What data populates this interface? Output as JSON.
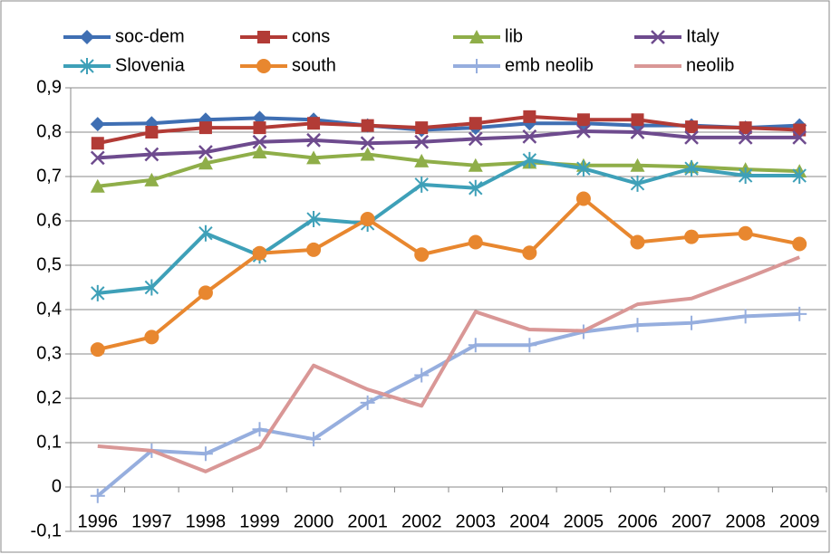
{
  "chart_data": {
    "type": "line",
    "categories": [
      "1996",
      "1997",
      "1998",
      "1999",
      "2000",
      "2001",
      "2002",
      "2003",
      "2004",
      "2005",
      "2006",
      "2007",
      "2008",
      "2009"
    ],
    "ylim": [
      -0.1,
      0.9
    ],
    "yticks": [
      {
        "value": -0.1,
        "label": "-0,1"
      },
      0,
      {
        "value": 0.1,
        "label": "0,1"
      },
      {
        "value": 0.2,
        "label": "0,2"
      },
      {
        "value": 0.3,
        "label": "0,3"
      },
      {
        "value": 0.4,
        "label": "0,4"
      },
      {
        "value": 0.5,
        "label": "0,5"
      },
      {
        "value": 0.6,
        "label": "0,6"
      },
      {
        "value": 0.7,
        "label": "0,7"
      },
      {
        "value": 0.8,
        "label": "0,8"
      },
      {
        "value": 0.9,
        "label": "0,9"
      }
    ],
    "grid": true,
    "legend": "top",
    "series": [
      {
        "name": "soc-dem",
        "color": "#3f6fb3",
        "marker": "diamond",
        "values": [
          0.818,
          0.82,
          0.828,
          0.832,
          0.828,
          0.815,
          0.805,
          0.81,
          0.82,
          0.82,
          0.815,
          0.815,
          0.81,
          0.815
        ]
      },
      {
        "name": "cons",
        "color": "#b23b36",
        "marker": "square",
        "values": [
          0.775,
          0.8,
          0.81,
          0.81,
          0.82,
          0.815,
          0.81,
          0.82,
          0.835,
          0.828,
          0.828,
          0.812,
          0.81,
          0.805
        ]
      },
      {
        "name": "lib",
        "color": "#8fae49",
        "marker": "triangle",
        "values": [
          0.678,
          0.692,
          0.73,
          0.755,
          0.742,
          0.75,
          0.735,
          0.725,
          0.732,
          0.725,
          0.725,
          0.722,
          0.716,
          0.712
        ]
      },
      {
        "name": "Italy",
        "color": "#6e4b8e",
        "marker": "x",
        "values": [
          0.742,
          0.75,
          0.755,
          0.778,
          0.782,
          0.775,
          0.778,
          0.785,
          0.79,
          0.802,
          0.8,
          0.788,
          0.788,
          0.788
        ]
      },
      {
        "name": "Slovenia",
        "color": "#3ea0b8",
        "marker": "asterisk",
        "values": [
          0.437,
          0.45,
          0.572,
          0.522,
          0.604,
          0.594,
          0.682,
          0.674,
          0.737,
          0.718,
          0.684,
          0.718,
          0.702,
          0.702
        ]
      },
      {
        "name": "south",
        "color": "#e8872f",
        "marker": "circle",
        "values": [
          0.31,
          0.338,
          0.438,
          0.527,
          0.535,
          0.604,
          0.524,
          0.552,
          0.528,
          0.65,
          0.552,
          0.564,
          0.572,
          0.548
        ]
      },
      {
        "name": "emb neolib",
        "color": "#96aede",
        "marker": "plus",
        "values": [
          -0.02,
          0.082,
          0.075,
          0.13,
          0.108,
          0.19,
          0.252,
          0.32,
          0.32,
          0.35,
          0.365,
          0.37,
          0.385,
          0.39
        ]
      },
      {
        "name": "neolib",
        "color": "#d99796",
        "values": [
          0.092,
          0.082,
          0.035,
          0.09,
          0.274,
          0.22,
          0.183,
          0.395,
          0.355,
          0.352,
          0.412,
          0.425,
          0.47,
          0.518
        ]
      }
    ]
  }
}
